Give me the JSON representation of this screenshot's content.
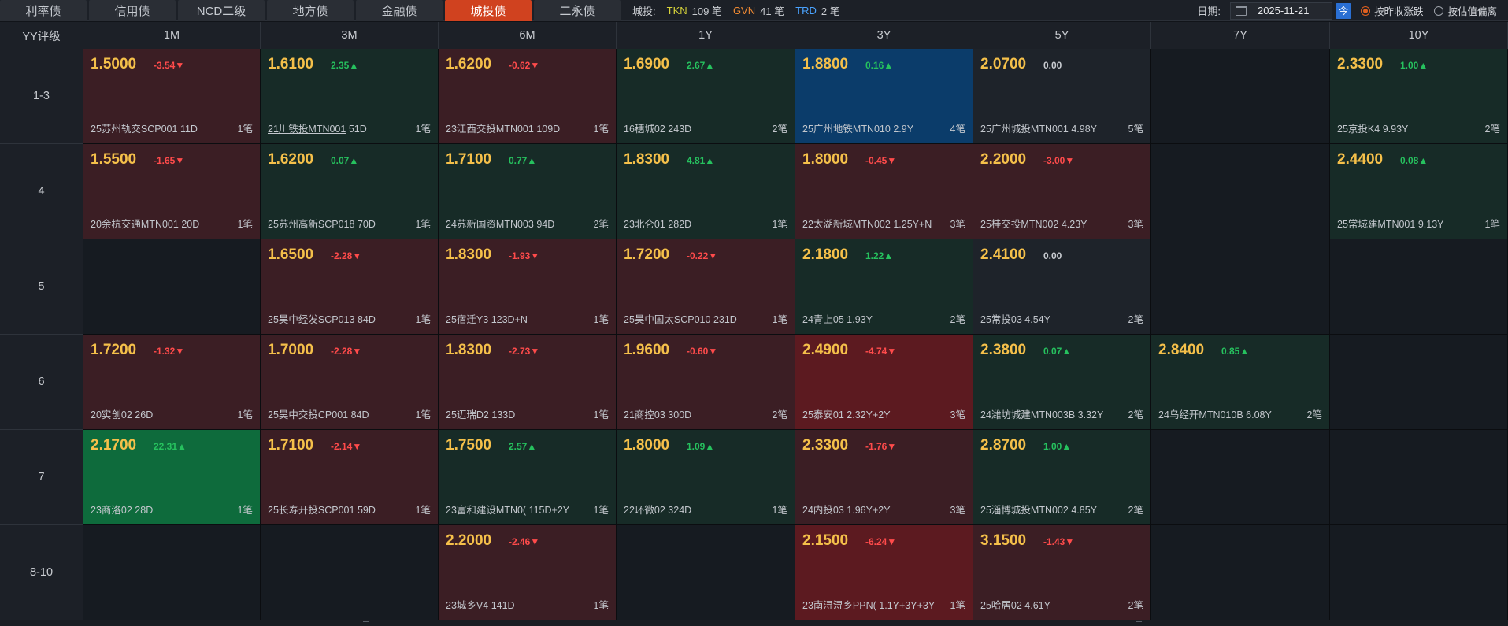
{
  "tabs": [
    {
      "label": "利率债",
      "active": false
    },
    {
      "label": "信用债",
      "active": false
    },
    {
      "label": "NCD二级",
      "active": false
    },
    {
      "label": "地方债",
      "active": false
    },
    {
      "label": "金融债",
      "active": false
    },
    {
      "label": "城投债",
      "active": true
    },
    {
      "label": "二永债",
      "active": false
    }
  ],
  "filter": {
    "label": "城投:",
    "badges": [
      {
        "name": "TKN",
        "count": "109 笔",
        "color": "#d6d23a"
      },
      {
        "name": "GVN",
        "count": "41 笔",
        "color": "#f08a33"
      },
      {
        "name": "TRD",
        "count": "2 笔",
        "color": "#4aa3ff"
      }
    ]
  },
  "date": {
    "label": "日期:",
    "value": "2025-11-21",
    "today_icon": "今"
  },
  "options": [
    {
      "label": "按昨收涨跌",
      "checked": true
    },
    {
      "label": "按估值偏离",
      "checked": false
    }
  ],
  "colors": {
    "accent": "#d0421f",
    "yield": "#f5c04a",
    "up": "#26c15e",
    "down": "#ff4b4b",
    "empty": "#161b21",
    "red": "#3b1e24",
    "red_strong": "#5c1a20",
    "green": "#172b27",
    "green_strong": "#0e6b3c",
    "blue": "#0b3c6a",
    "neutral": "#1e232a"
  },
  "grid": {
    "corner": "YY评级",
    "columns": [
      "1M",
      "3M",
      "6M",
      "1Y",
      "3Y",
      "5Y",
      "7Y",
      "10Y"
    ],
    "rows": [
      {
        "label": "1-3",
        "cells": [
          {
            "y": "1.5000",
            "c": "-3.54▼",
            "d": "dn",
            "b": "25苏州轨交SCP001",
            "t": "11D",
            "n": "1笔",
            "bg": "red"
          },
          {
            "y": "1.6100",
            "c": "2.35▲",
            "d": "up",
            "b": "21川铁投MTN001",
            "t": "51D",
            "n": "1笔",
            "bg": "green",
            "ul": true
          },
          {
            "y": "1.6200",
            "c": "-0.62▼",
            "d": "dn",
            "b": "23江西交投MTN001",
            "t": "109D",
            "n": "1笔",
            "bg": "red"
          },
          {
            "y": "1.6900",
            "c": "2.67▲",
            "d": "up",
            "b": "16穗城02",
            "t": "243D",
            "n": "2笔",
            "bg": "green"
          },
          {
            "y": "1.8800",
            "c": "0.16▲",
            "d": "up",
            "b": "25广州地铁MTN010",
            "t": "2.9Y",
            "n": "4笔",
            "bg": "blue"
          },
          {
            "y": "2.0700",
            "c": "0.00",
            "d": "flat",
            "b": "25广州城投MTN001",
            "t": "4.98Y",
            "n": "5笔",
            "bg": "neutral"
          },
          null,
          {
            "y": "2.3300",
            "c": "1.00▲",
            "d": "up",
            "b": "25京投K4",
            "t": "9.93Y",
            "n": "2笔",
            "bg": "green"
          }
        ]
      },
      {
        "label": "4",
        "cells": [
          {
            "y": "1.5500",
            "c": "-1.65▼",
            "d": "dn",
            "b": "20余杭交通MTN001",
            "t": "20D",
            "n": "1笔",
            "bg": "red"
          },
          {
            "y": "1.6200",
            "c": "0.07▲",
            "d": "up",
            "b": "25苏州高新SCP018",
            "t": "70D",
            "n": "1笔",
            "bg": "green"
          },
          {
            "y": "1.7100",
            "c": "0.77▲",
            "d": "up",
            "b": "24苏新国资MTN003",
            "t": "94D",
            "n": "2笔",
            "bg": "green"
          },
          {
            "y": "1.8300",
            "c": "4.81▲",
            "d": "up",
            "b": "23北仑01",
            "t": "282D",
            "n": "1笔",
            "bg": "green"
          },
          {
            "y": "1.8000",
            "c": "-0.45▼",
            "d": "dn",
            "b": "22太湖新城MTN002",
            "t": "1.25Y+N",
            "n": "3笔",
            "bg": "red"
          },
          {
            "y": "2.2000",
            "c": "-3.00▼",
            "d": "dn",
            "b": "25桂交投MTN002",
            "t": "4.23Y",
            "n": "3笔",
            "bg": "red"
          },
          null,
          {
            "y": "2.4400",
            "c": "0.08▲",
            "d": "up",
            "b": "25常城建MTN001",
            "t": "9.13Y",
            "n": "1笔",
            "bg": "green"
          }
        ]
      },
      {
        "label": "5",
        "cells": [
          null,
          {
            "y": "1.6500",
            "c": "-2.28▼",
            "d": "dn",
            "b": "25昊中经发SCP013",
            "t": "84D",
            "n": "1笔",
            "bg": "red"
          },
          {
            "y": "1.8300",
            "c": "-1.93▼",
            "d": "dn",
            "b": "25宿迁Y3",
            "t": "123D+N",
            "n": "1笔",
            "bg": "red"
          },
          {
            "y": "1.7200",
            "c": "-0.22▼",
            "d": "dn",
            "b": "25昊中国太SCP010",
            "t": "231D",
            "n": "1笔",
            "bg": "red"
          },
          {
            "y": "2.1800",
            "c": "1.22▲",
            "d": "up",
            "b": "24青上05",
            "t": "1.93Y",
            "n": "2笔",
            "bg": "green"
          },
          {
            "y": "2.4100",
            "c": "0.00",
            "d": "flat",
            "b": "25常投03",
            "t": "4.54Y",
            "n": "2笔",
            "bg": "neutral"
          },
          null,
          null
        ]
      },
      {
        "label": "6",
        "cells": [
          {
            "y": "1.7200",
            "c": "-1.32▼",
            "d": "dn",
            "b": "20实创02",
            "t": "26D",
            "n": "1笔",
            "bg": "red"
          },
          {
            "y": "1.7000",
            "c": "-2.28▼",
            "d": "dn",
            "b": "25昊中交投CP001",
            "t": "84D",
            "n": "1笔",
            "bg": "red"
          },
          {
            "y": "1.8300",
            "c": "-2.73▼",
            "d": "dn",
            "b": "25迈瑞D2",
            "t": "133D",
            "n": "1笔",
            "bg": "red"
          },
          {
            "y": "1.9600",
            "c": "-0.60▼",
            "d": "dn",
            "b": "21商控03",
            "t": "300D",
            "n": "2笔",
            "bg": "red"
          },
          {
            "y": "2.4900",
            "c": "-4.74▼",
            "d": "dn",
            "b": "25泰安01",
            "t": "2.32Y+2Y",
            "n": "3笔",
            "bg": "red_strong"
          },
          {
            "y": "2.3800",
            "c": "0.07▲",
            "d": "up",
            "b": "24潍坊城建MTN003B",
            "t": "3.32Y",
            "n": "2笔",
            "bg": "green"
          },
          {
            "y": "2.8400",
            "c": "0.85▲",
            "d": "up",
            "b": "24乌经开MTN010B",
            "t": "6.08Y",
            "n": "2笔",
            "bg": "green"
          },
          null
        ]
      },
      {
        "label": "7",
        "cells": [
          {
            "y": "2.1700",
            "c": "22.31▲",
            "d": "up",
            "b": "23商洛02",
            "t": "28D",
            "n": "1笔",
            "bg": "green_strong"
          },
          {
            "y": "1.7100",
            "c": "-2.14▼",
            "d": "dn",
            "b": "25长寿开投SCP001",
            "t": "59D",
            "n": "1笔",
            "bg": "red"
          },
          {
            "y": "1.7500",
            "c": "2.57▲",
            "d": "up",
            "b": "23富和建设MTN0(",
            "t": "115D+2Y",
            "n": "1笔",
            "bg": "green"
          },
          {
            "y": "1.8000",
            "c": "1.09▲",
            "d": "up",
            "b": "22环微02",
            "t": "324D",
            "n": "1笔",
            "bg": "green"
          },
          {
            "y": "2.3300",
            "c": "-1.76▼",
            "d": "dn",
            "b": "24内投03",
            "t": "1.96Y+2Y",
            "n": "3笔",
            "bg": "red"
          },
          {
            "y": "2.8700",
            "c": "1.00▲",
            "d": "up",
            "b": "25淄博城投MTN002",
            "t": "4.85Y",
            "n": "2笔",
            "bg": "green"
          },
          null,
          null
        ]
      },
      {
        "label": "8-10",
        "cells": [
          null,
          null,
          {
            "y": "2.2000",
            "c": "-2.46▼",
            "d": "dn",
            "b": "23城乡V4",
            "t": "141D",
            "n": "1笔",
            "bg": "red"
          },
          null,
          {
            "y": "2.1500",
            "c": "-6.24▼",
            "d": "dn",
            "b": "23南浔浔乡PPN(",
            "t": "1.1Y+3Y+3Y",
            "n": "1笔",
            "bg": "red_strong"
          },
          {
            "y": "3.1500",
            "c": "-1.43▼",
            "d": "dn",
            "b": "25哈居02",
            "t": "4.61Y",
            "n": "2笔",
            "bg": "red"
          },
          null,
          null
        ]
      }
    ]
  }
}
